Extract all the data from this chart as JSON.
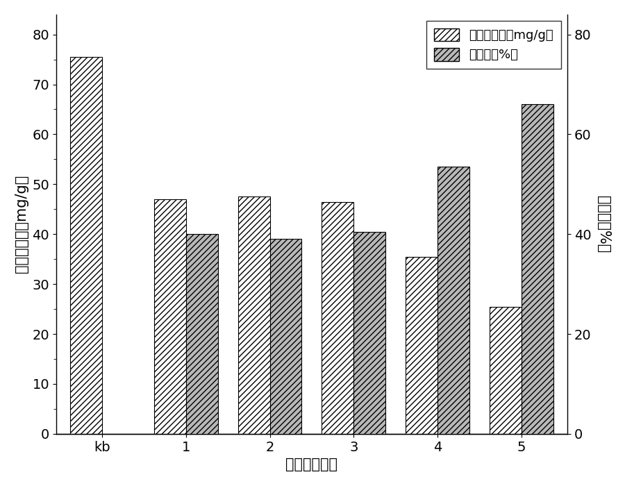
{
  "categories": [
    "kb",
    "1",
    "2",
    "3",
    "4",
    "5"
  ],
  "concentration": [
    75.5,
    47.0,
    47.5,
    46.5,
    35.5,
    25.5
  ],
  "degradation_rate": [
    null,
    40.0,
    39.0,
    40.5,
    53.5,
    66.0
  ],
  "left_ylim": [
    0,
    84
  ],
  "right_ylim": [
    0,
    84
  ],
  "left_yticks": [
    0,
    10,
    20,
    30,
    40,
    50,
    60,
    70,
    80
  ],
  "right_yticks": [
    0,
    20,
    40,
    60,
    80
  ],
  "xlabel": "不同投加方案",
  "ylabel_left": "石油烃浓度（mg/g）",
  "ylabel_right": "降解率（%）",
  "legend_conc": "石油烃浓度（mg/g）",
  "legend_degrad": "降解率（%）",
  "bar_width": 0.38,
  "conc_hatch": "////",
  "conc_facecolor": "white",
  "conc_edgecolor": "black",
  "degrad_hatch": "////",
  "degrad_facecolor": "#b8b8b8",
  "degrad_edgecolor": "black",
  "background_color": "white",
  "font_size": 15,
  "axis_font_size": 14,
  "legend_font_size": 13,
  "title_font_size": 14
}
